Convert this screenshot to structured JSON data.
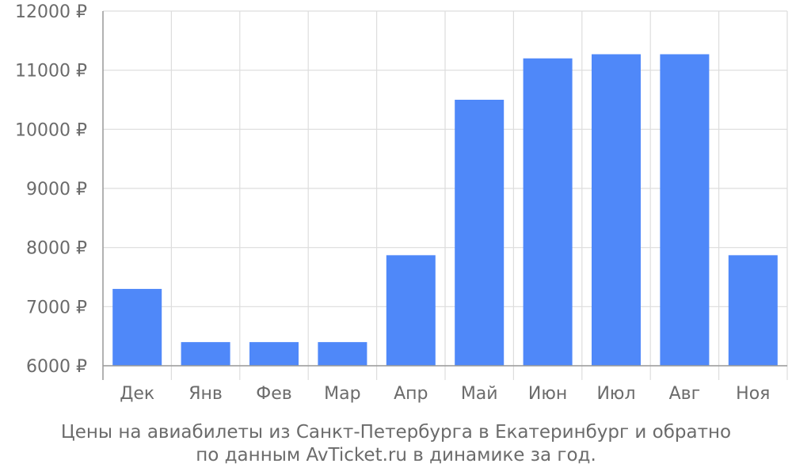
{
  "chart_data": {
    "type": "bar",
    "categories": [
      "Дек",
      "Янв",
      "Фев",
      "Мар",
      "Апр",
      "Май",
      "Июн",
      "Июл",
      "Авг",
      "Ноя"
    ],
    "series": [
      {
        "values": [
          7300,
          6400,
          6400,
          6400,
          7870,
          10500,
          11200,
          11270,
          11270,
          7870
        ]
      }
    ],
    "ylim": [
      6000,
      12000
    ],
    "yticks": [
      6000,
      7000,
      8000,
      9000,
      10000,
      11000,
      12000
    ],
    "ytick_labels": [
      "6000 ₽",
      "7000 ₽",
      "8000 ₽",
      "9000 ₽",
      "10000 ₽",
      "11000 ₽",
      "12000 ₽"
    ],
    "grid": true,
    "colors": {
      "bar": "#4f88f9",
      "grid": "#dddddd",
      "axis": "#9a9a9a",
      "text": "#6b6b6b"
    }
  },
  "caption": {
    "line1": "Цены на авиабилеты из Санкт-Петербурга в Екатеринбург и обратно",
    "line2": "по данным AvTicket.ru в динамике за год."
  }
}
